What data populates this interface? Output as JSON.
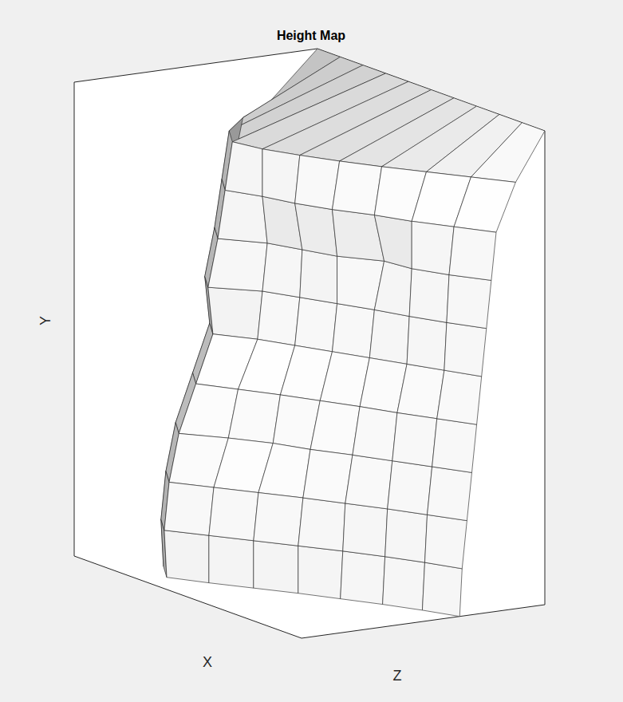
{
  "chart_data": {
    "type": "surface",
    "title": "Height Map",
    "x_label": "X",
    "y_label": "Y",
    "z_label": "Z",
    "xlim": [
      0,
      100
    ],
    "ylim": [
      0,
      100
    ],
    "zlim": [
      0,
      100
    ],
    "tick_labels": false,
    "x": [
      0,
      10,
      20,
      30,
      40,
      50,
      60,
      70,
      80,
      90,
      100
    ],
    "y": [
      0,
      10,
      20,
      30,
      40,
      50,
      60,
      70,
      80,
      90,
      100
    ],
    "z": [
      [
        50,
        32,
        18,
        10,
        18,
        27,
        36,
        44,
        52,
        59,
        65
      ],
      [
        49,
        31,
        17,
        9,
        18,
        27,
        36,
        45,
        53,
        60,
        66
      ],
      [
        51,
        33,
        19,
        11,
        20,
        29,
        38,
        46,
        54,
        61,
        68
      ],
      [
        55,
        37,
        23,
        15,
        26,
        35,
        41,
        49,
        56,
        63,
        70
      ],
      [
        62,
        44,
        30,
        22,
        30,
        38,
        45,
        52,
        58,
        65,
        72
      ],
      [
        69,
        51,
        37,
        29,
        38,
        44,
        50,
        56,
        62,
        68,
        74
      ],
      [
        67,
        49,
        35,
        27,
        40,
        46,
        52,
        58,
        63,
        69,
        76
      ],
      [
        71,
        53,
        39,
        31,
        42,
        47,
        52,
        62,
        64,
        70,
        78
      ],
      [
        74,
        56,
        42,
        34,
        40,
        44,
        50,
        58,
        64,
        72,
        80
      ],
      [
        80,
        60,
        45,
        37,
        40,
        46,
        53,
        61,
        70,
        79,
        88
      ],
      [
        100,
        100,
        100,
        100,
        100,
        100,
        100,
        100,
        100,
        100,
        100
      ]
    ]
  }
}
